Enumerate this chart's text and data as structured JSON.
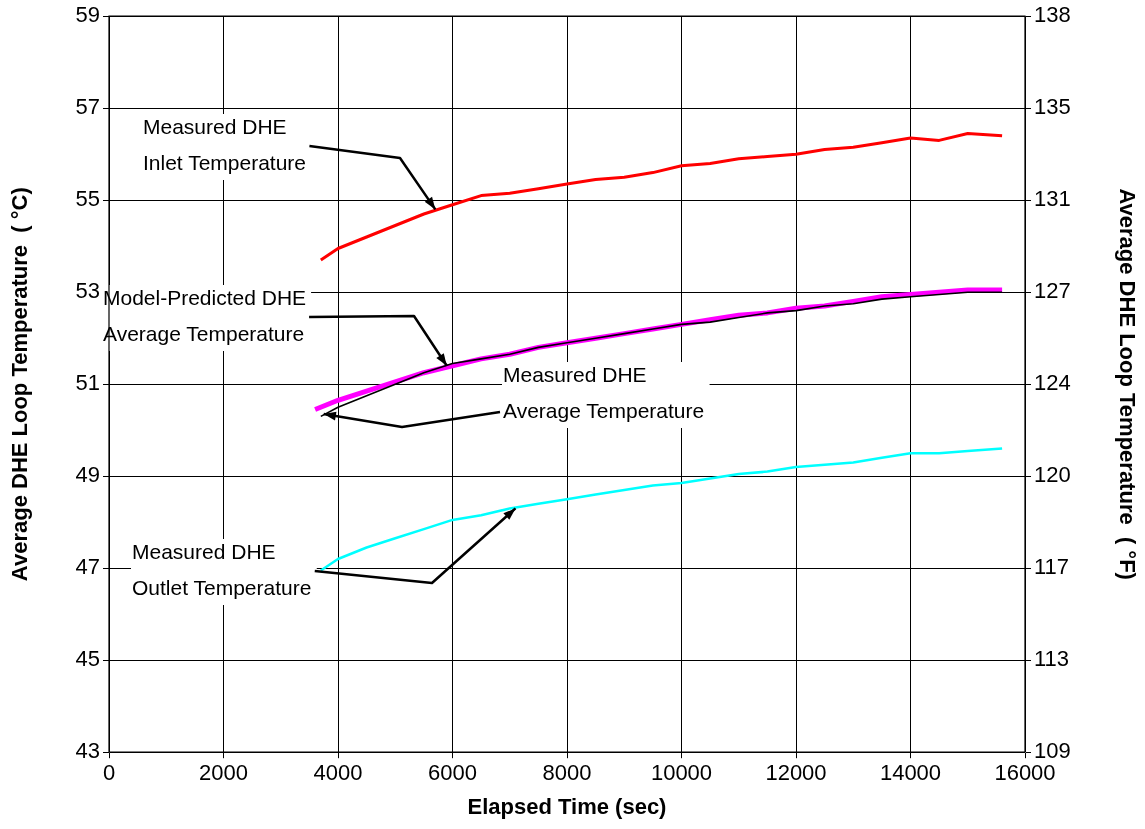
{
  "chart_data": {
    "type": "line",
    "xlabel": "Elapsed Time (sec)",
    "ylabel": "Average DHE Loop Temperature  ( °C)",
    "y2label": "Average DHE Loop Temperature  ( °F)",
    "xlim": [
      0,
      16000
    ],
    "xticks": [
      0,
      2000,
      4000,
      6000,
      8000,
      10000,
      12000,
      14000,
      16000
    ],
    "ylim": [
      43,
      59
    ],
    "yticks": [
      43,
      45,
      47,
      49,
      51,
      53,
      55,
      57,
      59
    ],
    "y2lim": [
      109.4,
      138.2
    ],
    "y2ticks": [
      {
        "value": 109.4,
        "label": "109"
      },
      {
        "value": 113,
        "label": "113"
      },
      {
        "value": 116.6,
        "label": "117"
      },
      {
        "value": 120.2,
        "label": "120"
      },
      {
        "value": 123.8,
        "label": "124"
      },
      {
        "value": 127.4,
        "label": "127"
      },
      {
        "value": 131,
        "label": "131"
      },
      {
        "value": 134.6,
        "label": "135"
      },
      {
        "value": 138.2,
        "label": "138"
      }
    ],
    "grid": true,
    "legend": false,
    "marker": "none",
    "line_style": "solid",
    "series": [
      {
        "color": "#ff0000",
        "x": [
          3700,
          4000,
          4500,
          5000,
          5500,
          6000,
          6500,
          7000,
          7500,
          8000,
          8500,
          9000,
          9500,
          10000,
          10500,
          11000,
          11500,
          12000,
          12500,
          13000,
          13500,
          14000,
          14500,
          15000,
          15600
        ],
        "values": [
          53.7,
          53.95,
          54.2,
          54.45,
          54.7,
          54.9,
          55.1,
          55.15,
          55.25,
          55.35,
          55.45,
          55.5,
          55.6,
          55.75,
          55.8,
          55.9,
          55.95,
          56.0,
          56.1,
          56.15,
          56.25,
          56.35,
          56.3,
          56.45,
          56.4
        ]
      },
      {
        "color": "#ff00ff",
        "x": [
          3600,
          4000,
          4500,
          5000,
          5500,
          6000,
          6500,
          7000,
          7500,
          8000,
          8500,
          9000,
          9500,
          10000,
          10500,
          11000,
          11500,
          12000,
          12500,
          13000,
          13500,
          14000,
          14500,
          15000,
          15600
        ],
        "values": [
          50.45,
          50.65,
          50.85,
          51.05,
          51.25,
          51.4,
          51.55,
          51.65,
          51.8,
          51.9,
          52.0,
          52.1,
          52.2,
          52.3,
          52.4,
          52.5,
          52.55,
          52.65,
          52.7,
          52.8,
          52.9,
          52.95,
          53.0,
          53.05,
          53.05
        ]
      },
      {
        "color": "#000000",
        "x": [
          3700,
          4000,
          4500,
          5000,
          5500,
          6000,
          6500,
          7000,
          7500,
          8000,
          8500,
          9000,
          9500,
          10000,
          10500,
          11000,
          11500,
          12000,
          12500,
          13000,
          13500,
          14000,
          14500,
          15000,
          15600
        ],
        "values": [
          50.3,
          50.5,
          50.75,
          51.0,
          51.25,
          51.45,
          51.55,
          51.65,
          51.8,
          51.9,
          52.0,
          52.1,
          52.2,
          52.3,
          52.35,
          52.45,
          52.55,
          52.6,
          52.7,
          52.75,
          52.85,
          52.9,
          52.95,
          53.0,
          53.0
        ]
      },
      {
        "color": "#00ffff",
        "x": [
          3700,
          4000,
          4500,
          5000,
          5500,
          6000,
          6500,
          7000,
          7500,
          8000,
          8500,
          9000,
          9500,
          10000,
          10500,
          11000,
          11500,
          12000,
          12500,
          13000,
          13500,
          14000,
          14500,
          15000,
          15600
        ],
        "values": [
          46.95,
          47.2,
          47.45,
          47.65,
          47.85,
          48.05,
          48.15,
          48.3,
          48.4,
          48.5,
          48.6,
          48.7,
          48.8,
          48.85,
          48.95,
          49.05,
          49.1,
          49.2,
          49.25,
          49.3,
          49.4,
          49.5,
          49.5,
          49.55,
          49.6
        ]
      }
    ],
    "annotations": [
      {
        "text": "Measured DHE\nInlet Temperature",
        "x": 5700,
        "y": 54.8
      },
      {
        "text": "Model-Predicted DHE\nAverage Temperature",
        "x": 5900,
        "y": 51.4
      },
      {
        "text": "Measured DHE\nAverage Temperature",
        "x": 3750,
        "y": 50.35
      },
      {
        "text": "Measured DHE\nOutlet Temperature",
        "x": 7100,
        "y": 48.3
      }
    ]
  }
}
